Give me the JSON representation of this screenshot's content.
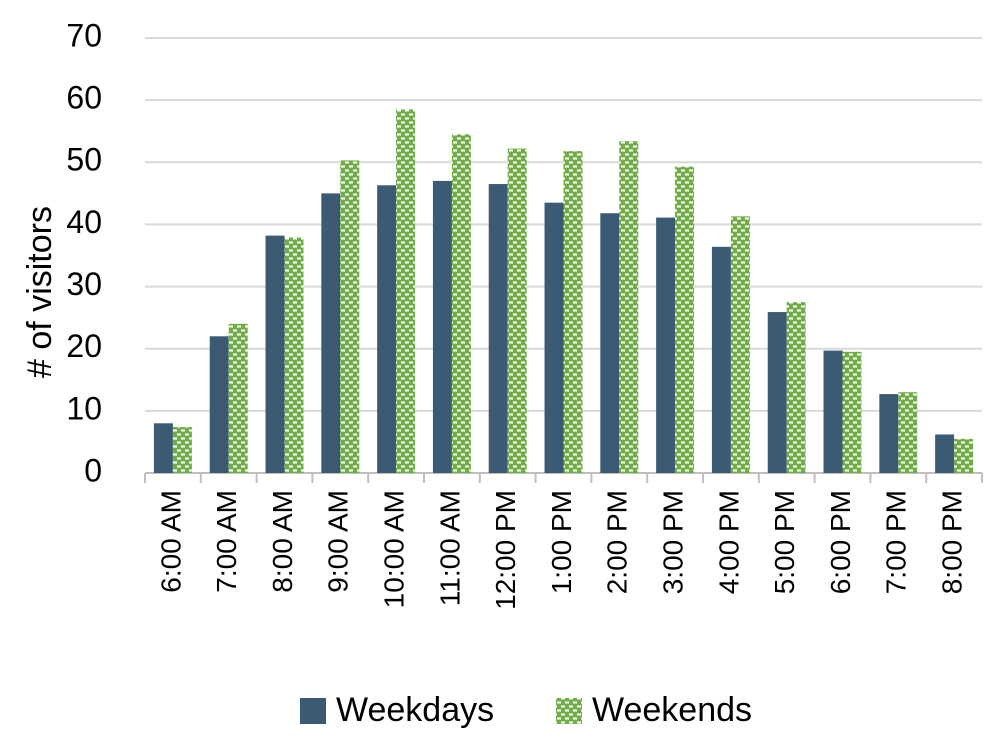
{
  "chart_data": {
    "type": "bar",
    "y_label": "# of visitors",
    "categories": [
      "6:00 AM",
      "7:00 AM",
      "8:00 AM",
      "9:00 AM",
      "10:00 AM",
      "11:00 AM",
      "12:00 PM",
      "1:00 PM",
      "2:00 PM",
      "3:00 PM",
      "4:00 PM",
      "5:00 PM",
      "6:00 PM",
      "7:00 PM",
      "8:00 PM"
    ],
    "series": [
      {
        "name": "Weekdays",
        "color": "#3b5b75",
        "pattern": false,
        "values": [
          8,
          22,
          38.2,
          45,
          46.3,
          47,
          46.5,
          43.5,
          41.8,
          41.1,
          36.4,
          25.9,
          19.7,
          12.7,
          6.2
        ]
      },
      {
        "name": "Weekends",
        "color": "#70ad47",
        "pattern": true,
        "values": [
          7.4,
          24,
          37.9,
          50.3,
          58.5,
          54.5,
          52.2,
          51.8,
          53.4,
          49.3,
          41.3,
          27.5,
          19.5,
          13,
          5.5
        ]
      }
    ],
    "ylim": [
      0,
      70
    ],
    "yticks": [
      0,
      10,
      20,
      30,
      40,
      50,
      60,
      70
    ],
    "grid": true,
    "legend": "bottom"
  }
}
